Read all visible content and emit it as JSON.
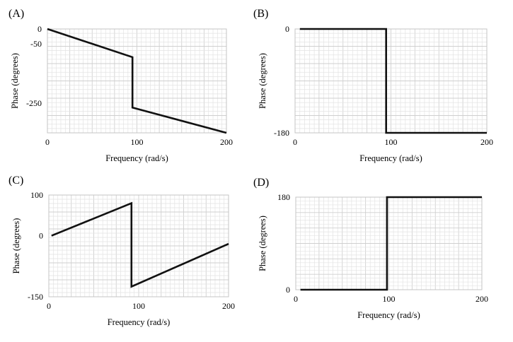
{
  "chart_data": [
    {
      "panel": "(A)",
      "type": "line",
      "xlabel": "Frequency (rad/s)",
      "ylabel": "Phase (degrees)",
      "xlim": [
        0,
        200
      ],
      "ylim": [
        -350,
        0
      ],
      "xticks": [
        0,
        100,
        200
      ],
      "xtick_labels": [
        "0",
        "100",
        "200"
      ],
      "yticks": [
        0,
        -50,
        -250
      ],
      "ytick_labels": [
        "0",
        "-50",
        "-250"
      ],
      "grid": true,
      "series": [
        {
          "x": [
            0,
            95,
            95,
            200
          ],
          "y": [
            0,
            -95,
            -265,
            -350
          ]
        }
      ]
    },
    {
      "panel": "(B)",
      "type": "line",
      "xlabel": "Frequency (rad/s)",
      "ylabel": "Phase (degrees)",
      "xlim": [
        0,
        200
      ],
      "ylim": [
        -180,
        0
      ],
      "xticks": [
        0,
        100,
        200
      ],
      "xtick_labels": [
        "0",
        "100",
        "200"
      ],
      "yticks": [
        0,
        -180
      ],
      "ytick_labels": [
        "0",
        "-180"
      ],
      "grid": true,
      "series": [
        {
          "x": [
            5,
            95,
            95,
            200
          ],
          "y": [
            0,
            0,
            -180,
            -180
          ]
        }
      ]
    },
    {
      "panel": "(C)",
      "type": "line",
      "xlabel": "Frequency (rad/s)",
      "ylabel": "Phase (degrees)",
      "xlim": [
        0,
        200
      ],
      "ylim": [
        -150,
        100
      ],
      "xticks": [
        0,
        100,
        200
      ],
      "xtick_labels": [
        "0",
        "100",
        "200"
      ],
      "yticks": [
        100,
        0,
        -150
      ],
      "ytick_labels": [
        "100",
        "0",
        "-150"
      ],
      "grid": true,
      "series": [
        {
          "x": [
            3,
            92,
            92,
            200
          ],
          "y": [
            0,
            80,
            -125,
            -20
          ]
        }
      ]
    },
    {
      "panel": "(D)",
      "type": "line",
      "xlabel": "Frequency (rad/s)",
      "ylabel": "Phase (degrees)",
      "xlim": [
        0,
        200
      ],
      "ylim": [
        0,
        180
      ],
      "xticks": [
        0,
        100,
        200
      ],
      "xtick_labels": [
        "0",
        "100",
        "200"
      ],
      "yticks": [
        180,
        0
      ],
      "ytick_labels": [
        "180",
        "0"
      ],
      "grid": true,
      "series": [
        {
          "x": [
            5,
            98,
            98,
            200
          ],
          "y": [
            0,
            0,
            180,
            180
          ]
        }
      ]
    }
  ]
}
